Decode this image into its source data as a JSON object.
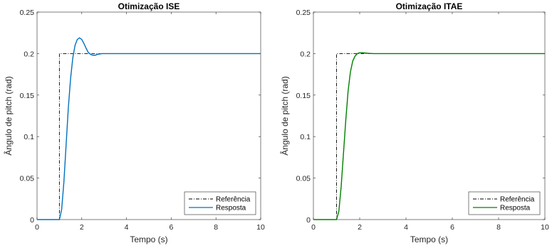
{
  "chart_data": [
    {
      "type": "line",
      "title": "Otimização ISE",
      "xlabel": "Tempo (s)",
      "ylabel": "Ângulo de pitch (rad)",
      "xlim": [
        0,
        10
      ],
      "ylim": [
        0,
        0.25
      ],
      "xticks": [
        "0",
        "2",
        "4",
        "6",
        "8",
        "10"
      ],
      "yticks": [
        "0",
        "0.05",
        "0.1",
        "0.15",
        "0.2",
        "0.25"
      ],
      "legend_position": "bottom-right",
      "grid": false,
      "series": [
        {
          "name": "Referência",
          "color": "#000000",
          "style": "dash-dot",
          "x": [
            0,
            1,
            1,
            10
          ],
          "y": [
            0,
            0,
            0.2,
            0.2
          ]
        },
        {
          "name": "Resposta",
          "color": "#0072bd",
          "style": "solid",
          "x": [
            0,
            1.0,
            1.1,
            1.2,
            1.3,
            1.4,
            1.5,
            1.6,
            1.7,
            1.8,
            1.9,
            2.0,
            2.1,
            2.2,
            2.3,
            2.4,
            2.5,
            2.6,
            2.7,
            2.8,
            2.9,
            3.0,
            3.2,
            3.4,
            3.7,
            4.0,
            5.0,
            10
          ],
          "y": [
            0,
            0,
            0.012,
            0.045,
            0.09,
            0.135,
            0.17,
            0.195,
            0.21,
            0.217,
            0.219,
            0.217,
            0.212,
            0.206,
            0.201,
            0.199,
            0.198,
            0.198,
            0.199,
            0.1995,
            0.2,
            0.2,
            0.2,
            0.2,
            0.2,
            0.2,
            0.2,
            0.2
          ]
        }
      ]
    },
    {
      "type": "line",
      "title": "Otimização ITAE",
      "xlabel": "Tempo (s)",
      "ylabel": "Ângulo de pitch (rad)",
      "xlim": [
        0,
        10
      ],
      "ylim": [
        0,
        0.25
      ],
      "xticks": [
        "0",
        "2",
        "4",
        "6",
        "8",
        "10"
      ],
      "yticks": [
        "0",
        "0.05",
        "0.1",
        "0.15",
        "0.2",
        "0.25"
      ],
      "legend_position": "bottom-right",
      "grid": false,
      "series": [
        {
          "name": "Referência",
          "color": "#000000",
          "style": "dash-dot",
          "x": [
            0,
            1,
            1,
            10
          ],
          "y": [
            0,
            0,
            0.2,
            0.2
          ]
        },
        {
          "name": "Resposta",
          "color": "#008000",
          "style": "solid",
          "x": [
            0,
            1.0,
            1.1,
            1.2,
            1.3,
            1.4,
            1.5,
            1.6,
            1.7,
            1.8,
            1.9,
            2.0,
            2.1,
            2.2,
            2.4,
            2.6,
            3.0,
            4.0,
            10
          ],
          "y": [
            0,
            0,
            0.01,
            0.04,
            0.08,
            0.12,
            0.155,
            0.178,
            0.191,
            0.197,
            0.2,
            0.201,
            0.201,
            0.2008,
            0.2003,
            0.2,
            0.2,
            0.2,
            0.2
          ]
        }
      ]
    }
  ]
}
